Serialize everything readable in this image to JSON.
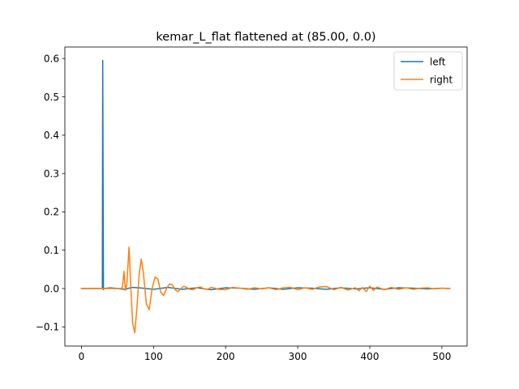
{
  "chart_data": {
    "type": "line",
    "title": "kemar_L_flat flattened at (85.00, 0.0)",
    "xlabel": "",
    "ylabel": "",
    "xlim": [
      -23,
      535
    ],
    "ylim": [
      -0.15,
      0.63
    ],
    "xticks": [
      0,
      100,
      200,
      300,
      400,
      500
    ],
    "yticks": [
      -0.1,
      0.0,
      0.1,
      0.2,
      0.3,
      0.4,
      0.5,
      0.6
    ],
    "ytick_labels": [
      "−0.1",
      "0.0",
      "0.1",
      "0.2",
      "0.3",
      "0.4",
      "0.5",
      "0.6"
    ],
    "grid": false,
    "legend_position": "top-right",
    "series": [
      {
        "name": "left",
        "color": "#1f77b4",
        "x": [
          0,
          28,
          29,
          29.5,
          30,
          30.5,
          31,
          32,
          40,
          50,
          60,
          70,
          80,
          100,
          120,
          140,
          160,
          180,
          200,
          220,
          240,
          260,
          280,
          300,
          320,
          340,
          360,
          380,
          400,
          420,
          440,
          460,
          480,
          500,
          511
        ],
        "y": [
          0,
          0,
          0,
          0.595,
          0.3,
          -0.003,
          0.0,
          0.0,
          0.002,
          0.0,
          -0.002,
          0.003,
          0.002,
          -0.002,
          0.003,
          -0.002,
          0.002,
          -0.003,
          0.002,
          0.001,
          -0.002,
          0.002,
          -0.002,
          0.002,
          0.001,
          -0.002,
          0.002,
          -0.001,
          0.002,
          -0.002,
          0.002,
          0.001,
          -0.001,
          0.001,
          0
        ]
      },
      {
        "name": "right",
        "color": "#ff7f0e",
        "x": [
          0,
          55,
          57,
          59,
          61,
          63,
          66,
          68,
          71,
          74,
          77,
          80,
          83,
          86,
          90,
          94,
          98,
          102,
          106,
          110,
          114,
          118,
          122,
          126,
          130,
          134,
          138,
          142,
          146,
          150,
          155,
          160,
          165,
          170,
          175,
          180,
          185,
          190,
          200,
          210,
          220,
          230,
          240,
          250,
          260,
          270,
          280,
          290,
          300,
          310,
          320,
          330,
          340,
          350,
          360,
          370,
          380,
          385,
          390,
          395,
          400,
          405,
          410,
          420,
          430,
          440,
          450,
          460,
          470,
          480,
          490,
          500,
          511
        ],
        "y": [
          0,
          0,
          0.005,
          0.045,
          -0.005,
          0.012,
          0.108,
          0.02,
          -0.09,
          -0.115,
          -0.05,
          0.035,
          0.077,
          0.04,
          -0.04,
          -0.055,
          0.0,
          0.03,
          0.025,
          -0.01,
          -0.018,
          0.0,
          0.012,
          0.01,
          -0.003,
          -0.008,
          0.0,
          0.006,
          0.003,
          -0.002,
          -0.003,
          0.002,
          0.004,
          -0.001,
          -0.002,
          0.003,
          0.001,
          -0.002,
          -0.003,
          0.003,
          0.001,
          -0.002,
          0.002,
          -0.001,
          0.002,
          -0.003,
          0.002,
          0.003,
          -0.003,
          0.002,
          -0.002,
          0.004,
          0.005,
          -0.003,
          0.003,
          -0.004,
          0.002,
          -0.006,
          0.003,
          -0.008,
          0.006,
          -0.005,
          0.004,
          -0.003,
          0.003,
          -0.002,
          0.002,
          -0.002,
          0.001,
          0.002,
          -0.001,
          0.001,
          0
        ]
      }
    ]
  }
}
